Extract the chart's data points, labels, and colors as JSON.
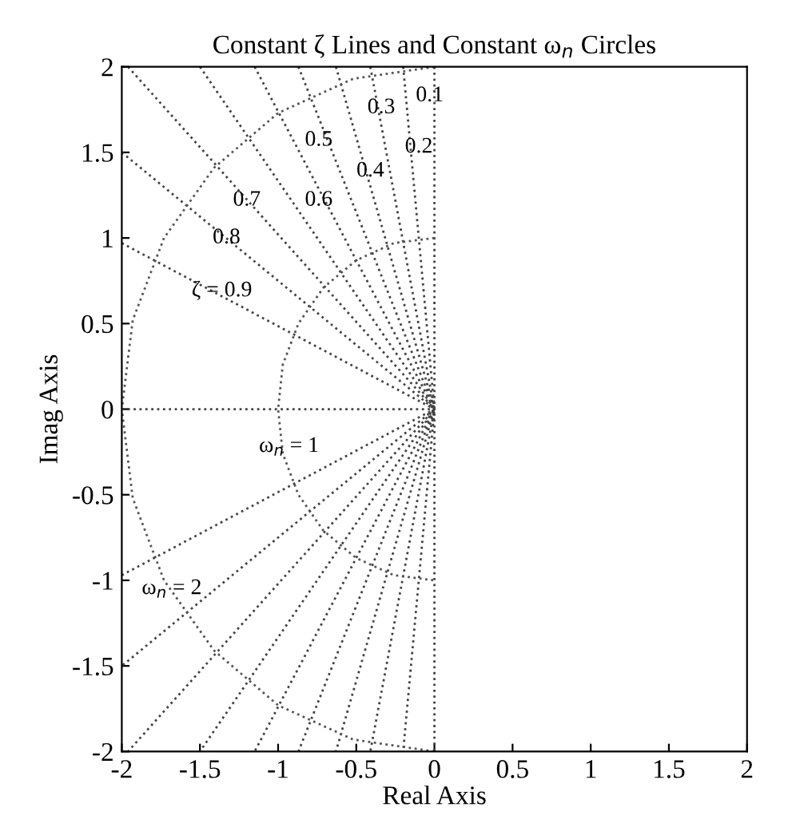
{
  "chart_data": {
    "type": "line",
    "title": "Constant ζ Lines and Constant ω$_{n}$ Circles",
    "xlabel": "Real Axis",
    "ylabel": "Imag Axis",
    "xlim": [
      -2,
      2
    ],
    "ylim": [
      -2,
      2
    ],
    "xticks": [
      -2,
      -1.5,
      -1,
      -0.5,
      0,
      0.5,
      1,
      1.5,
      2
    ],
    "yticks": [
      -2,
      -1.5,
      -1,
      -0.5,
      0,
      0.5,
      1,
      1.5,
      2
    ],
    "grid": false,
    "legend": false,
    "marker": "none",
    "line_style": "dotted",
    "series": [
      {
        "color": "#444444",
        "x": [
          0,
          0,
          0
        ],
        "values": [
          2,
          0,
          -2
        ]
      },
      {
        "color": "#444444",
        "x": [
          -0.2,
          0,
          -0.2
        ],
        "values": [
          2,
          0,
          -2
        ]
      },
      {
        "color": "#444444",
        "x": [
          -0.41,
          0,
          -0.41
        ],
        "values": [
          2,
          0,
          -2
        ]
      },
      {
        "color": "#444444",
        "x": [
          -0.63,
          0,
          -0.63
        ],
        "values": [
          2,
          0,
          -2
        ]
      },
      {
        "color": "#444444",
        "x": [
          -0.87,
          0,
          -0.87
        ],
        "values": [
          2,
          0,
          -2
        ]
      },
      {
        "color": "#444444",
        "x": [
          -1.15,
          0,
          -1.15
        ],
        "values": [
          2,
          0,
          -2
        ]
      },
      {
        "color": "#444444",
        "x": [
          -1.5,
          0,
          -1.5
        ],
        "values": [
          2,
          0,
          -2
        ]
      },
      {
        "color": "#444444",
        "x": [
          -1.96,
          0,
          -1.96
        ],
        "values": [
          2,
          0,
          -2
        ]
      },
      {
        "color": "#444444",
        "x": [
          -2,
          0,
          -2
        ],
        "values": [
          1.5,
          0,
          -1.5
        ]
      },
      {
        "color": "#444444",
        "x": [
          -2,
          0,
          -2
        ],
        "values": [
          0.97,
          0,
          -0.97
        ]
      },
      {
        "color": "#444444",
        "x": [
          -2,
          0
        ],
        "values": [
          0,
          0
        ]
      },
      {
        "color": "#555555",
        "x": [
          0,
          -0.26,
          -0.5,
          -0.71,
          -0.87,
          -0.97,
          -1,
          -0.97,
          -0.87,
          -0.71,
          -0.5,
          -0.26,
          0
        ],
        "values": [
          1,
          0.97,
          0.87,
          0.71,
          0.5,
          0.26,
          0,
          -0.26,
          -0.5,
          -0.71,
          -0.87,
          -0.97,
          -1
        ]
      },
      {
        "color": "#555555",
        "x": [
          0,
          -0.52,
          -1,
          -1.41,
          -1.73,
          -1.93,
          -2,
          -1.93,
          -1.73,
          -1.41,
          -1,
          -0.52,
          0
        ],
        "values": [
          2,
          1.93,
          1.73,
          1.41,
          1,
          0.52,
          0,
          -0.52,
          -1,
          -1.41,
          -1.73,
          -1.93,
          -2
        ]
      }
    ],
    "annotations": [
      {
        "text": "0.1",
        "x": -0.03,
        "y": 1.83
      },
      {
        "text": "0.2",
        "x": -0.1,
        "y": 1.53
      },
      {
        "text": "0.3",
        "x": -0.34,
        "y": 1.76
      },
      {
        "text": "0.4",
        "x": -0.41,
        "y": 1.39
      },
      {
        "text": "0.5",
        "x": -0.74,
        "y": 1.57
      },
      {
        "text": "0.6",
        "x": -0.74,
        "y": 1.22
      },
      {
        "text": "0.7",
        "x": -1.2,
        "y": 1.22
      },
      {
        "text": "0.8",
        "x": -1.33,
        "y": 1.0
      },
      {
        "text": "ζ = 0.9",
        "x": -1.36,
        "y": 0.69
      },
      {
        "text": "ω$_{n}$ = 1",
        "x": -0.93,
        "y": -0.22
      },
      {
        "text": "ω$_{n}$ = 2",
        "x": -1.68,
        "y": -1.05
      }
    ]
  }
}
